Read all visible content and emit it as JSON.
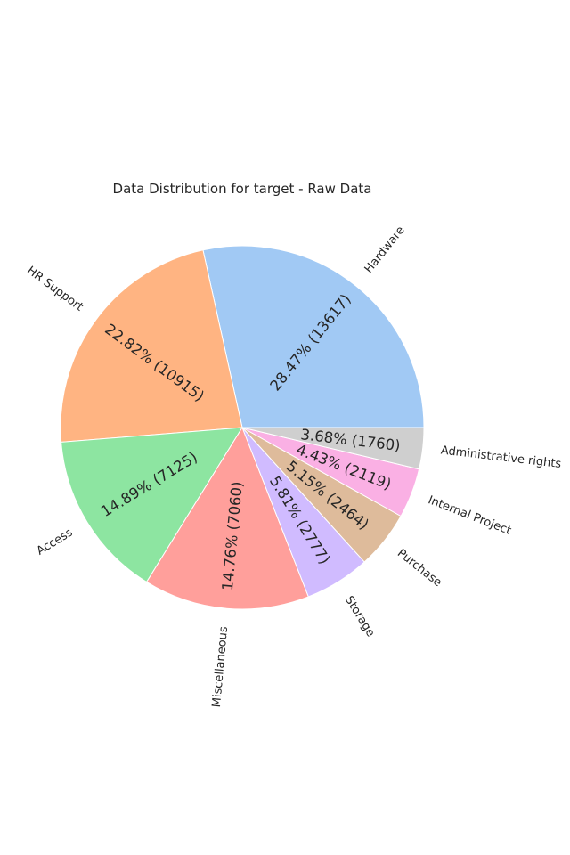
{
  "chart_data": {
    "type": "pie",
    "title": "Data Distribution for target - Raw Data",
    "slices": [
      {
        "name": "Hardware",
        "value": 13617,
        "pct_label": "28.47% (13617)",
        "color": "#a1c9f4"
      },
      {
        "name": "HR Support",
        "value": 10915,
        "pct_label": "22.82% (10915)",
        "color": "#ffb482"
      },
      {
        "name": "Access",
        "value": 7125,
        "pct_label": "14.89% (7125)",
        "color": "#8de5a1"
      },
      {
        "name": "Miscellaneous",
        "value": 7060,
        "pct_label": "14.76% (7060)",
        "color": "#ff9f9b"
      },
      {
        "name": "Storage",
        "value": 2777,
        "pct_label": "5.81% (2777)",
        "color": "#d0bbff"
      },
      {
        "name": "Purchase",
        "value": 2464,
        "pct_label": "5.15% (2464)",
        "color": "#debb9b"
      },
      {
        "name": "Internal Project",
        "value": 2119,
        "pct_label": "4.43% (2119)",
        "color": "#fab0e4"
      },
      {
        "name": "Administrative rights",
        "value": 1760,
        "pct_label": "3.68% (1760)",
        "color": "#cfcfcf"
      }
    ],
    "start_angle_deg": 0,
    "direction": "counterclockwise",
    "legend": "none"
  }
}
